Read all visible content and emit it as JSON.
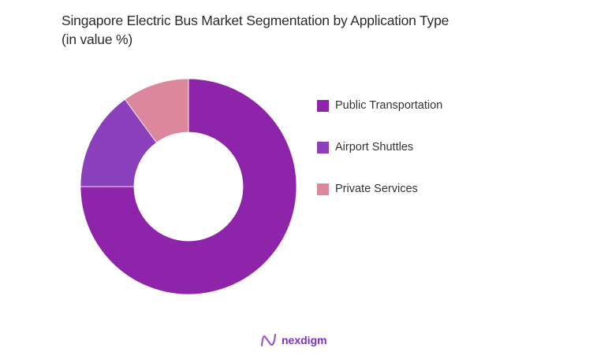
{
  "title_line1": "Singapore Electric Bus Market Segmentation by Application Type",
  "title_line2": "(in value %)",
  "chart_data": {
    "type": "pie",
    "subtype": "donut",
    "title": "Singapore Electric Bus Market Segmentation by Application Type (in value %)",
    "categories": [
      "Public Transportation",
      "Airport Shuttles",
      "Private Services"
    ],
    "values": [
      75,
      15,
      10
    ],
    "colors": [
      "#8e24aa",
      "#8a3fbb",
      "#dc879c"
    ],
    "legend_position": "right",
    "start_angle": "12 o'clock, clockwise"
  },
  "legend": {
    "items": [
      {
        "label": "Public Transportation",
        "color": "#8e24aa"
      },
      {
        "label": "Airport Shuttles",
        "color": "#8a3fbb"
      },
      {
        "label": "Private Services",
        "color": "#dc879c"
      }
    ]
  },
  "brand": {
    "name": "nexdigm",
    "icon": "nexdigm-logo-icon"
  }
}
